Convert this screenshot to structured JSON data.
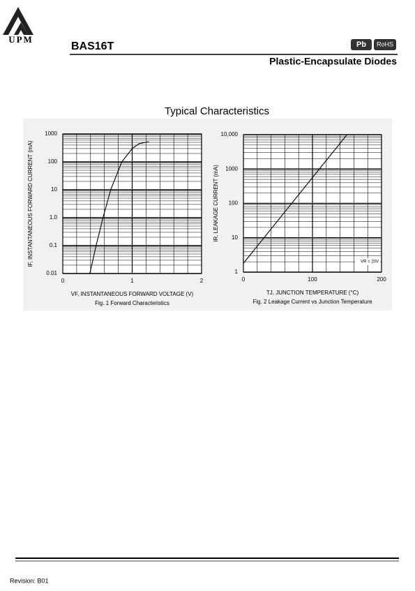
{
  "header": {
    "logo": "UPM",
    "part_number": "BAS16T",
    "badges": [
      "Pb",
      "RoHS"
    ],
    "subtitle": "Plastic-Encapsulate Diodes"
  },
  "section_title": "Typical Characteristics",
  "chart_data": [
    {
      "type": "line",
      "title": "Fig. 1  Forward Characteristics",
      "x_label": "VF, INSTANTANEOUS FORWARD VOLTAGE (V)",
      "y_label": "IF, INSTANTANEOUS FORWARD CURRENT (mA)",
      "x": [
        0.39,
        0.48,
        0.58,
        0.69,
        0.85,
        1.0,
        1.1,
        1.24
      ],
      "values": [
        0.01,
        0.1,
        1,
        10,
        100,
        300,
        450,
        530
      ],
      "color": "#000000",
      "log_y": true,
      "grid": true,
      "xlim": [
        0,
        2
      ],
      "xticks": [
        0,
        1,
        2
      ],
      "ylim": [
        0.01,
        1000
      ],
      "yticks": [
        0.01,
        0.1,
        {
          "value": 1,
          "label": "1.0"
        },
        10,
        100,
        1000
      ]
    },
    {
      "type": "line",
      "title": "Fig. 2  Leakage Current vs Junction Temperature",
      "x_label": "TJ, JUNCTION TEMPERATURE (°C)",
      "y_label": "IR, LEAKAGE CURRENT (mA)",
      "annotation": "VR = 20V",
      "x": [
        0,
        150
      ],
      "values": [
        1.8,
        10000
      ],
      "color": "#000000",
      "log_y": true,
      "grid": true,
      "xlim": [
        0,
        200
      ],
      "xticks": [
        0,
        100,
        200
      ],
      "ylim": [
        1,
        10000
      ],
      "yticks": [
        1,
        10,
        100,
        1000,
        {
          "value": 10000,
          "label": "10,000"
        }
      ]
    }
  ],
  "footer": {
    "revision": "Revision: B01"
  }
}
